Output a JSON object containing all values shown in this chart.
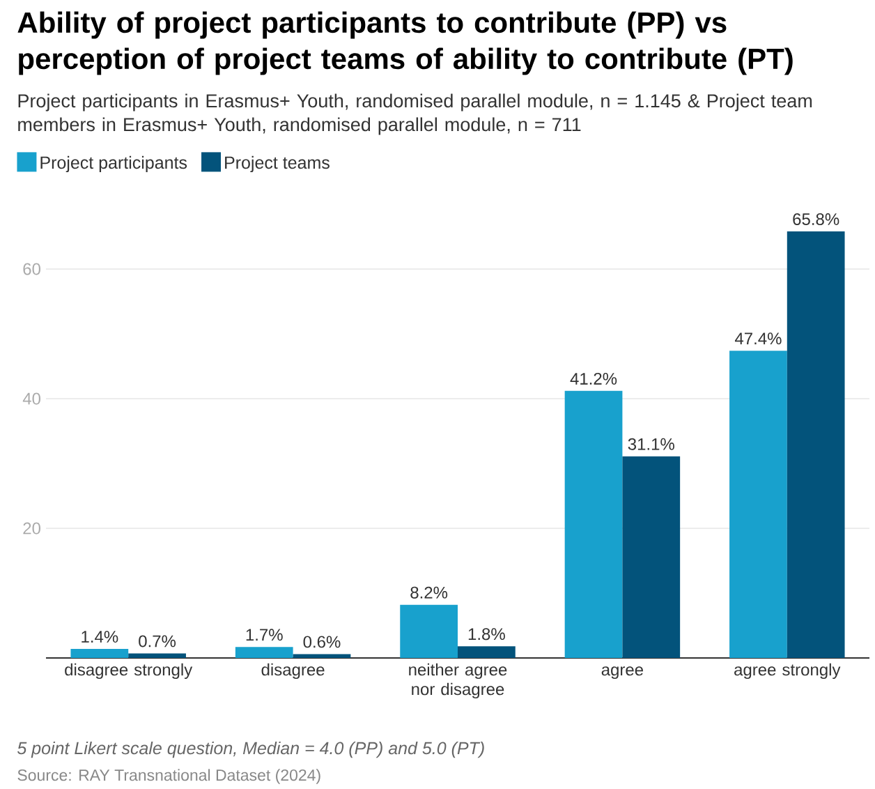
{
  "chart_data": {
    "type": "bar",
    "title": "Ability of project participants to contribute (PP) vs perception of project teams of ability to contribute (PT)",
    "subtitle": "Project participants in Erasmus+ Youth, randomised parallel module, n = 1.145 & Project team members in Erasmus+ Youth, randomised parallel module, n = 711",
    "categories": [
      "disagree strongly",
      "disagree",
      "neither agree nor disagree",
      "agree",
      "agree strongly"
    ],
    "series": [
      {
        "name": "Project participants",
        "color": "#18a1cd",
        "values": [
          1.4,
          1.7,
          8.2,
          41.2,
          47.4
        ],
        "value_labels": [
          "1.4%",
          "1.7%",
          "8.2%",
          "41.2%",
          "47.4%"
        ]
      },
      {
        "name": "Project teams",
        "color": "#03537b",
        "values": [
          0.7,
          0.6,
          1.8,
          31.1,
          65.8
        ],
        "value_labels": [
          "0.7%",
          "0.6%",
          "1.8%",
          "31.1%",
          "65.8%"
        ]
      }
    ],
    "ylim": [
      0,
      65.8
    ],
    "yticks": [
      20,
      40,
      60
    ],
    "grid": "y",
    "legend": "top left",
    "annotations": [
      "5 point Likert scale question, Median = 4.0 (PP) and 5.0 (PT)",
      "Source: RAY Transnational Dataset (2024)"
    ]
  }
}
